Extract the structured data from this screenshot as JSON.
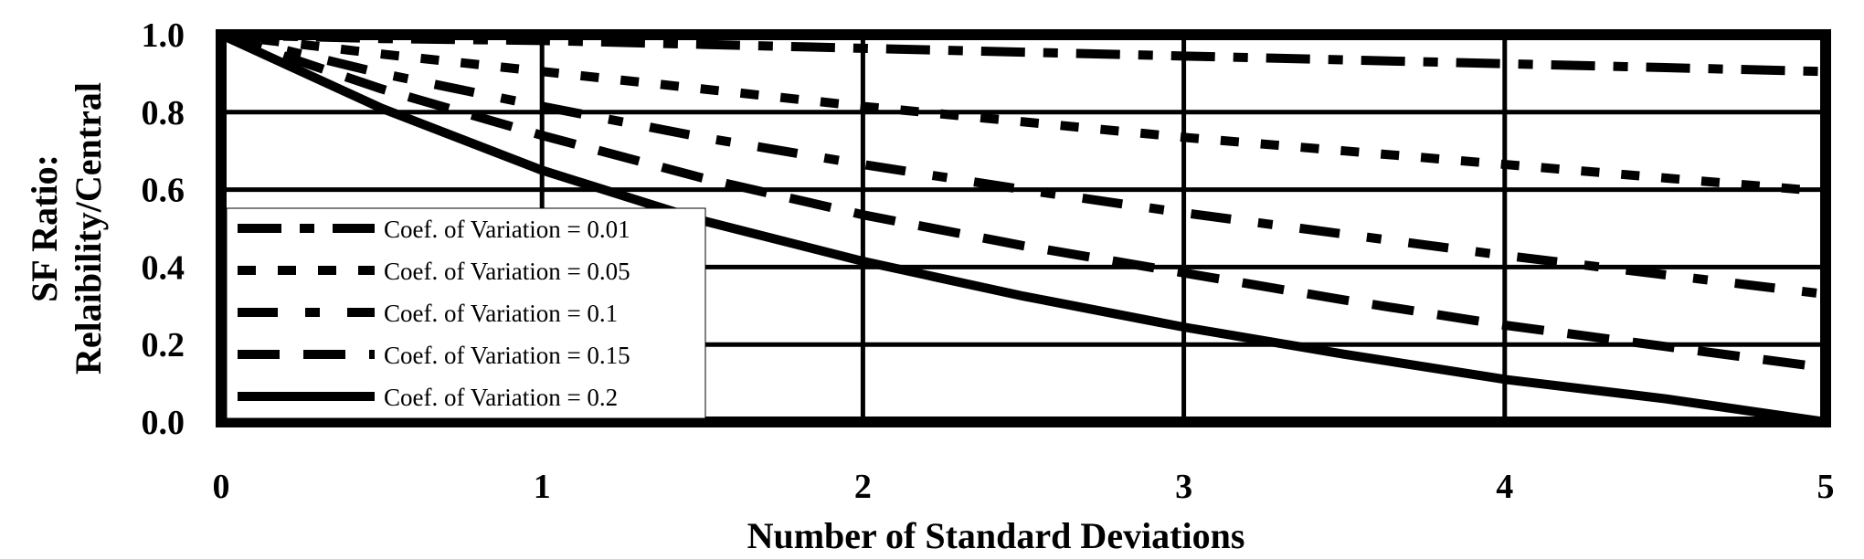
{
  "chart_data": {
    "type": "line",
    "xlabel": "Number of Standard Deviations",
    "ylabel": [
      "SF Ratio:",
      "Relaibility/Central"
    ],
    "xlim": [
      0,
      5
    ],
    "ylim": [
      0,
      1
    ],
    "x_ticks": [
      "0",
      "1",
      "2",
      "3",
      "4",
      "5"
    ],
    "y_ticks": [
      "0.0",
      "0.2",
      "0.4",
      "0.6",
      "0.8",
      "1.0"
    ],
    "grid": true,
    "legend_position": "left",
    "series": [
      {
        "name": "Coef. of Variation = 0.01",
        "x": [
          0,
          0.5,
          1,
          1.5,
          2,
          2.5,
          3,
          3.5,
          4,
          4.5,
          5
        ],
        "values": [
          1.0,
          0.99,
          0.985,
          0.975,
          0.965,
          0.955,
          0.945,
          0.935,
          0.925,
          0.915,
          0.905
        ]
      },
      {
        "name": "Coef. of Variation = 0.05",
        "x": [
          0,
          0.5,
          1,
          1.5,
          2,
          2.5,
          3,
          3.5,
          4,
          4.5,
          5
        ],
        "values": [
          1.0,
          0.95,
          0.905,
          0.86,
          0.815,
          0.775,
          0.735,
          0.7,
          0.665,
          0.63,
          0.595
        ]
      },
      {
        "name": "Coef. of Variation = 0.1",
        "x": [
          0,
          0.5,
          1,
          1.5,
          2,
          2.5,
          3,
          3.5,
          4,
          4.5,
          5
        ],
        "values": [
          1.0,
          0.9,
          0.815,
          0.735,
          0.665,
          0.6,
          0.54,
          0.485,
          0.43,
          0.38,
          0.33
        ]
      },
      {
        "name": "Coef. of Variation = 0.15",
        "x": [
          0,
          0.5,
          1,
          1.5,
          2,
          2.5,
          3,
          3.5,
          4,
          4.5,
          5
        ],
        "values": [
          1.0,
          0.86,
          0.74,
          0.63,
          0.535,
          0.455,
          0.385,
          0.315,
          0.25,
          0.195,
          0.14
        ]
      },
      {
        "name": "Coef. of Variation = 0.2",
        "x": [
          0,
          0.5,
          1,
          1.5,
          2,
          2.5,
          3,
          3.5,
          4,
          4.5,
          5
        ],
        "values": [
          1.0,
          0.81,
          0.65,
          0.52,
          0.415,
          0.325,
          0.245,
          0.175,
          0.11,
          0.06,
          0.0
        ]
      }
    ]
  }
}
